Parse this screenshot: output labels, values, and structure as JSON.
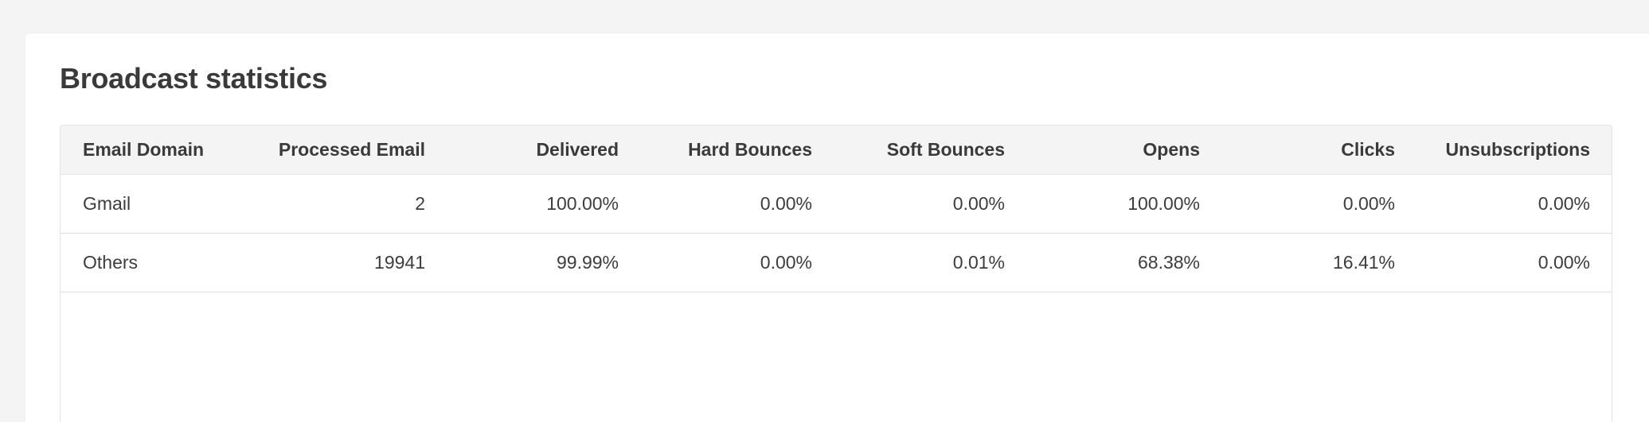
{
  "page": {
    "title": "Broadcast statistics"
  },
  "table": {
    "columns": [
      "Email Domain",
      "Processed Email",
      "Delivered",
      "Hard Bounces",
      "Soft Bounces",
      "Opens",
      "Clicks",
      "Unsubscriptions"
    ],
    "rows": [
      [
        "Gmail",
        "2",
        "100.00%",
        "0.00%",
        "0.00%",
        "100.00%",
        "0.00%",
        "0.00%"
      ],
      [
        "Others",
        "19941",
        "99.99%",
        "0.00%",
        "0.01%",
        "68.38%",
        "16.41%",
        "0.00%"
      ]
    ]
  },
  "colors": {
    "page_background": "#f4f4f4",
    "card_background": "#ffffff",
    "header_background": "#f4f4f4",
    "text": "#3a3a3a"
  }
}
